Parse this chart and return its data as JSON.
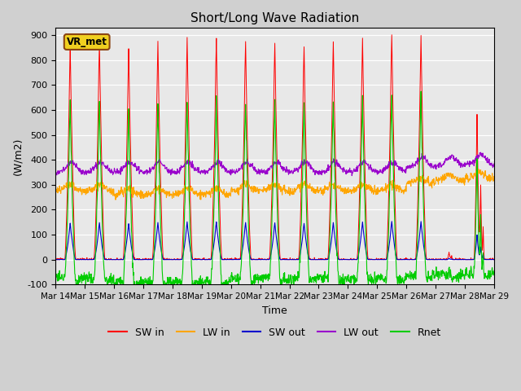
{
  "title": "Short/Long Wave Radiation",
  "xlabel": "Time",
  "ylabel": "(W/m2)",
  "ylim": [
    -100,
    930
  ],
  "xlim": [
    0,
    360
  ],
  "station_label": "VR_met",
  "x_tick_labels": [
    "Mar 14",
    "Mar 15",
    "Mar 16",
    "Mar 17",
    "Mar 18",
    "Mar 19",
    "Mar 20",
    "Mar 21",
    "Mar 22",
    "Mar 23",
    "Mar 24",
    "Mar 25",
    "Mar 26",
    "Mar 27",
    "Mar 28",
    "Mar 29"
  ],
  "x_tick_positions": [
    0,
    24,
    48,
    72,
    96,
    120,
    144,
    168,
    192,
    216,
    240,
    264,
    288,
    312,
    336,
    360
  ],
  "colors": {
    "SW_in": "#ff0000",
    "LW_in": "#ffa500",
    "SW_out": "#0000cc",
    "LW_out": "#9900cc",
    "Rnet": "#00cc00"
  },
  "legend_labels": [
    "SW in",
    "LW in",
    "SW out",
    "LW out",
    "Rnet"
  ],
  "fig_bg": "#d0d0d0",
  "axes_bg": "#e8e8e8",
  "grid_color": "#ffffff",
  "n_hours": 360,
  "dt": 0.25
}
